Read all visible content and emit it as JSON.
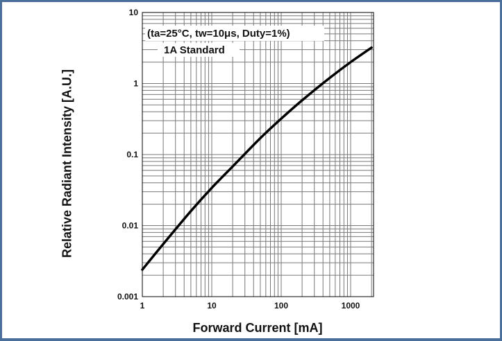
{
  "colors": {
    "frame": "#4a6f9a",
    "grid": "#777777",
    "curve": "#000000"
  },
  "chart_data": {
    "type": "line",
    "title": "",
    "xlabel": "Forward Current [mA]",
    "ylabel": "Relative Radiant Intensity [A.U.]",
    "x_scale": "log",
    "y_scale": "log",
    "xlim": [
      1,
      2000
    ],
    "ylim": [
      0.001,
      10
    ],
    "grid": true,
    "x_ticks": [
      "1",
      "10",
      "100",
      "1000"
    ],
    "y_ticks": [
      "0.001",
      "0.01",
      "0.1",
      "1",
      "10"
    ],
    "annotations": [
      "(ta=25°C, tw=10μs, Duty=1%)",
      "1A Standard"
    ],
    "series": [
      {
        "x": [
          1,
          2,
          5,
          10,
          20,
          50,
          100,
          200,
          500,
          1000,
          2000
        ],
        "y": [
          0.0024,
          0.0055,
          0.016,
          0.034,
          0.068,
          0.17,
          0.32,
          0.58,
          1.2,
          2.0,
          3.2
        ]
      }
    ]
  }
}
